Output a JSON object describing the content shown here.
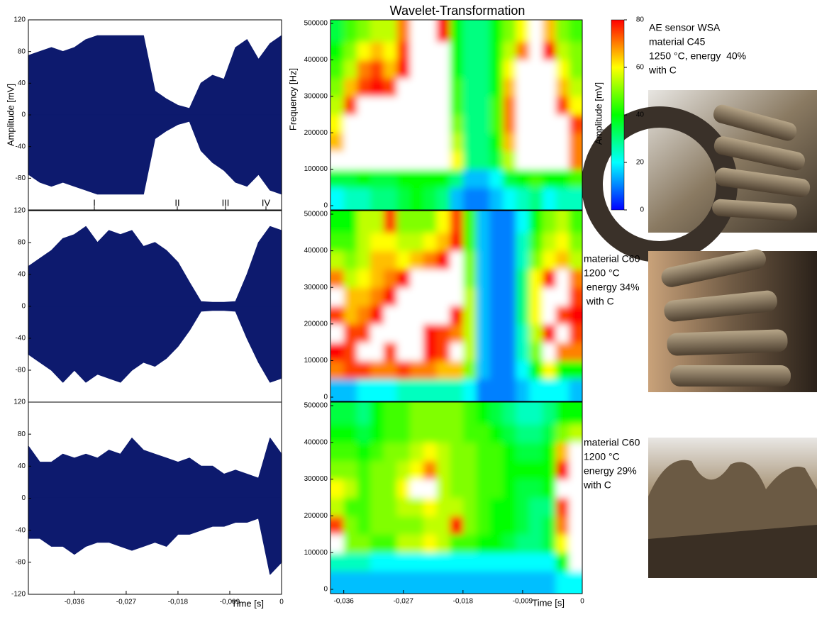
{
  "title": "Wavelet-Transformation",
  "annotations": [
    {
      "lines": [
        "AE sensor WSA",
        "material C45",
        "1250 °C, energy  40%",
        "with C"
      ]
    },
    {
      "lines": [
        "material C60",
        "1200 °C",
        " energy 34%",
        " with C"
      ]
    },
    {
      "lines": [
        "material C60",
        "1200 °C",
        "energy 29%",
        "with C"
      ]
    }
  ],
  "colorbar": {
    "label": "Amplitude [mV]",
    "zlim": [
      0,
      80
    ],
    "zticks": [
      0,
      20,
      40,
      60,
      80
    ],
    "colors": [
      "#0000ff",
      "#00ffff",
      "#00ff00",
      "#ffff00",
      "#ff0000"
    ],
    "over_color": "#ffffff"
  },
  "chart_data": [
    {
      "type": "band",
      "ylabel": "Amplitude [mV]",
      "phase_labels": [
        "I",
        "II",
        "III",
        "IV"
      ],
      "color": "#0d1a6e",
      "xlim": [
        -0.044,
        0
      ],
      "ylim": [
        -120,
        120
      ],
      "yticks": [
        120,
        80,
        40,
        0,
        -40,
        -80
      ],
      "x": [
        -0.044,
        -0.042,
        -0.04,
        -0.038,
        -0.036,
        -0.034,
        -0.032,
        -0.03,
        -0.028,
        -0.026,
        -0.024,
        -0.022,
        -0.02,
        -0.018,
        -0.016,
        -0.014,
        -0.012,
        -0.01,
        -0.008,
        -0.006,
        -0.004,
        -0.002,
        0
      ],
      "upper": [
        75,
        80,
        85,
        80,
        85,
        95,
        100,
        100,
        100,
        100,
        100,
        30,
        20,
        12,
        8,
        40,
        50,
        45,
        85,
        95,
        70,
        90,
        100
      ],
      "lower": [
        -75,
        -85,
        -90,
        -85,
        -90,
        -95,
        -100,
        -100,
        -100,
        -100,
        -100,
        -30,
        -20,
        -12,
        -8,
        -45,
        -60,
        -70,
        -85,
        -90,
        -75,
        -95,
        -100
      ]
    },
    {
      "type": "band",
      "color": "#0d1a6e",
      "xlim": [
        -0.044,
        0
      ],
      "ylim": [
        -120,
        120
      ],
      "yticks": [
        120,
        80,
        40,
        0,
        -40,
        -80
      ],
      "x": [
        -0.044,
        -0.042,
        -0.04,
        -0.038,
        -0.036,
        -0.034,
        -0.032,
        -0.03,
        -0.028,
        -0.026,
        -0.024,
        -0.022,
        -0.02,
        -0.018,
        -0.016,
        -0.014,
        -0.012,
        -0.01,
        -0.008,
        -0.006,
        -0.004,
        -0.002,
        0
      ],
      "upper": [
        50,
        60,
        70,
        85,
        90,
        100,
        80,
        95,
        90,
        95,
        75,
        80,
        70,
        55,
        30,
        6,
        5,
        5,
        6,
        40,
        80,
        100,
        95
      ],
      "lower": [
        -60,
        -70,
        -80,
        -95,
        -80,
        -95,
        -85,
        -90,
        -95,
        -80,
        -70,
        -75,
        -65,
        -50,
        -30,
        -6,
        -5,
        -5,
        -6,
        -40,
        -70,
        -95,
        -90
      ]
    },
    {
      "type": "band",
      "color": "#0d1a6e",
      "xlabel": "Time [s]",
      "xlim": [
        -0.044,
        0
      ],
      "ylim": [
        -120,
        120
      ],
      "yticks": [
        120,
        80,
        40,
        0,
        -40,
        -80,
        -120
      ],
      "xticks": [
        {
          "value": -0.036,
          "label": "-0,036"
        },
        {
          "value": -0.027,
          "label": "-0,027"
        },
        {
          "value": -0.018,
          "label": "-0,018"
        },
        {
          "value": -0.009,
          "label": "-0,009"
        },
        0
      ],
      "x": [
        -0.044,
        -0.042,
        -0.04,
        -0.038,
        -0.036,
        -0.034,
        -0.032,
        -0.03,
        -0.028,
        -0.026,
        -0.024,
        -0.022,
        -0.02,
        -0.018,
        -0.016,
        -0.014,
        -0.012,
        -0.01,
        -0.008,
        -0.006,
        -0.004,
        -0.002,
        0
      ],
      "upper": [
        65,
        45,
        45,
        55,
        50,
        55,
        50,
        60,
        55,
        75,
        60,
        55,
        50,
        45,
        50,
        40,
        40,
        30,
        35,
        30,
        25,
        75,
        55
      ],
      "lower": [
        -50,
        -50,
        -60,
        -60,
        -70,
        -60,
        -55,
        -55,
        -60,
        -65,
        -60,
        -55,
        -60,
        -45,
        -45,
        -40,
        -35,
        -35,
        -30,
        -30,
        -25,
        -95,
        -80
      ]
    },
    {
      "type": "heatmap",
      "ylabel": "Frequency [Hz]",
      "xlim": [
        -0.038,
        0
      ],
      "ylim": [
        0,
        500000
      ],
      "yticks": [
        0,
        100000,
        200000,
        300000,
        400000,
        500000
      ],
      "x": [
        -0.037,
        -0.035,
        -0.033,
        -0.031,
        -0.029,
        -0.027,
        -0.025,
        -0.023,
        -0.021,
        -0.019,
        -0.017,
        -0.015,
        -0.013,
        -0.011,
        -0.009,
        -0.007,
        -0.005,
        -0.003,
        -0.001
      ],
      "y": [
        25000,
        75000,
        125000,
        175000,
        225000,
        275000,
        325000,
        375000,
        425000,
        475000
      ],
      "z": [
        [
          20,
          25,
          25,
          30,
          30,
          35,
          40,
          35,
          30,
          15,
          10,
          10,
          15,
          20,
          25,
          30,
          20,
          25,
          25
        ],
        [
          35,
          35,
          40,
          35,
          35,
          40,
          40,
          40,
          40,
          30,
          15,
          15,
          20,
          35,
          40,
          45,
          40,
          40,
          45
        ],
        [
          90,
          90,
          90,
          90,
          90,
          90,
          90,
          90,
          90,
          60,
          30,
          30,
          35,
          55,
          90,
          90,
          90,
          90,
          70
        ],
        [
          65,
          90,
          90,
          90,
          90,
          90,
          90,
          90,
          90,
          55,
          30,
          30,
          40,
          65,
          90,
          90,
          90,
          90,
          70
        ],
        [
          60,
          90,
          90,
          90,
          90,
          90,
          90,
          90,
          90,
          50,
          30,
          30,
          45,
          70,
          90,
          90,
          90,
          90,
          75
        ],
        [
          55,
          75,
          90,
          90,
          90,
          90,
          90,
          90,
          90,
          45,
          30,
          30,
          45,
          70,
          90,
          90,
          90,
          75,
          60
        ],
        [
          50,
          65,
          75,
          80,
          75,
          90,
          90,
          90,
          90,
          45,
          30,
          30,
          40,
          65,
          90,
          90,
          90,
          65,
          55
        ],
        [
          45,
          55,
          70,
          75,
          65,
          80,
          90,
          90,
          90,
          40,
          30,
          30,
          40,
          60,
          85,
          90,
          90,
          60,
          50
        ],
        [
          40,
          50,
          60,
          65,
          60,
          75,
          90,
          90,
          85,
          40,
          30,
          30,
          40,
          55,
          70,
          90,
          80,
          55,
          50
        ],
        [
          35,
          45,
          50,
          55,
          55,
          70,
          90,
          90,
          80,
          40,
          30,
          30,
          40,
          50,
          60,
          85,
          65,
          50,
          45
        ]
      ]
    },
    {
      "type": "heatmap",
      "xlim": [
        -0.038,
        0
      ],
      "ylim": [
        0,
        500000
      ],
      "yticks": [
        0,
        100000,
        200000,
        300000,
        400000,
        500000
      ],
      "x": [
        -0.037,
        -0.035,
        -0.033,
        -0.031,
        -0.029,
        -0.027,
        -0.025,
        -0.023,
        -0.021,
        -0.019,
        -0.017,
        -0.015,
        -0.013,
        -0.011,
        -0.009,
        -0.007,
        -0.005,
        -0.003,
        -0.001
      ],
      "y": [
        25000,
        75000,
        125000,
        175000,
        225000,
        275000,
        325000,
        375000,
        425000,
        475000
      ],
      "z": [
        [
          15,
          15,
          20,
          20,
          20,
          25,
          25,
          25,
          25,
          25,
          20,
          10,
          10,
          10,
          15,
          20,
          20,
          20,
          15
        ],
        [
          70,
          75,
          75,
          70,
          70,
          75,
          70,
          70,
          65,
          65,
          50,
          15,
          10,
          10,
          20,
          40,
          60,
          40,
          40
        ],
        [
          80,
          75,
          85,
          90,
          75,
          90,
          85,
          80,
          75,
          90,
          55,
          15,
          10,
          10,
          25,
          50,
          85,
          70,
          70
        ],
        [
          90,
          75,
          75,
          85,
          90,
          90,
          90,
          80,
          75,
          70,
          55,
          15,
          10,
          10,
          25,
          55,
          80,
          90,
          75
        ],
        [
          75,
          65,
          70,
          80,
          90,
          90,
          90,
          90,
          85,
          80,
          55,
          15,
          10,
          10,
          30,
          60,
          85,
          75,
          80
        ],
        [
          90,
          65,
          65,
          70,
          80,
          90,
          90,
          90,
          90,
          90,
          55,
          15,
          10,
          10,
          30,
          60,
          90,
          90,
          75
        ],
        [
          70,
          55,
          60,
          65,
          70,
          80,
          85,
          90,
          90,
          90,
          50,
          15,
          10,
          10,
          30,
          60,
          80,
          85,
          70
        ],
        [
          55,
          50,
          55,
          65,
          65,
          60,
          65,
          70,
          80,
          90,
          50,
          15,
          10,
          10,
          25,
          50,
          60,
          65,
          55
        ],
        [
          45,
          45,
          55,
          60,
          60,
          55,
          55,
          60,
          65,
          80,
          45,
          15,
          10,
          10,
          25,
          45,
          55,
          60,
          50
        ],
        [
          40,
          40,
          55,
          55,
          75,
          50,
          50,
          50,
          60,
          75,
          45,
          15,
          10,
          10,
          20,
          40,
          50,
          55,
          45
        ]
      ]
    },
    {
      "type": "heatmap",
      "xlabel": "Time [s]",
      "xlim": [
        -0.038,
        0
      ],
      "ylim": [
        0,
        500000
      ],
      "yticks": [
        0,
        100000,
        200000,
        300000,
        400000,
        500000
      ],
      "xticks": [
        {
          "value": -0.036,
          "label": "-0,036"
        },
        {
          "value": -0.027,
          "label": "-0,027"
        },
        {
          "value": -0.018,
          "label": "-0,018"
        },
        {
          "value": -0.009,
          "label": "-0,009"
        },
        0
      ],
      "x": [
        -0.037,
        -0.035,
        -0.033,
        -0.031,
        -0.029,
        -0.027,
        -0.025,
        -0.023,
        -0.021,
        -0.019,
        -0.017,
        -0.015,
        -0.013,
        -0.011,
        -0.009,
        -0.007,
        -0.005,
        -0.003,
        -0.001
      ],
      "y": [
        25000,
        75000,
        125000,
        175000,
        225000,
        275000,
        325000,
        375000,
        425000,
        475000
      ],
      "z": [
        [
          15,
          15,
          15,
          15,
          15,
          15,
          15,
          15,
          15,
          15,
          15,
          15,
          15,
          15,
          15,
          15,
          15,
          20,
          20
        ],
        [
          25,
          25,
          25,
          20,
          20,
          20,
          20,
          20,
          20,
          20,
          20,
          20,
          20,
          20,
          20,
          20,
          20,
          40,
          85
        ],
        [
          85,
          50,
          50,
          45,
          45,
          55,
          55,
          60,
          55,
          45,
          45,
          40,
          40,
          35,
          30,
          30,
          35,
          60,
          85
        ],
        [
          75,
          50,
          45,
          50,
          50,
          50,
          50,
          55,
          55,
          80,
          50,
          45,
          40,
          40,
          35,
          30,
          35,
          70,
          85
        ],
        [
          55,
          45,
          45,
          50,
          50,
          55,
          55,
          60,
          55,
          55,
          50,
          45,
          40,
          40,
          35,
          30,
          30,
          75,
          85
        ],
        [
          60,
          55,
          45,
          50,
          50,
          60,
          90,
          85,
          55,
          50,
          50,
          45,
          45,
          40,
          35,
          35,
          40,
          85,
          90
        ],
        [
          50,
          50,
          45,
          50,
          50,
          55,
          60,
          70,
          55,
          50,
          50,
          45,
          45,
          40,
          40,
          40,
          40,
          80,
          90
        ],
        [
          45,
          45,
          40,
          45,
          50,
          50,
          55,
          60,
          55,
          50,
          50,
          45,
          45,
          40,
          35,
          35,
          40,
          65,
          90
        ],
        [
          40,
          40,
          35,
          40,
          45,
          45,
          50,
          50,
          50,
          50,
          45,
          45,
          40,
          35,
          30,
          30,
          35,
          50,
          55
        ],
        [
          35,
          35,
          30,
          40,
          45,
          45,
          50,
          50,
          50,
          50,
          45,
          40,
          35,
          30,
          25,
          25,
          30,
          40,
          40
        ]
      ]
    }
  ]
}
